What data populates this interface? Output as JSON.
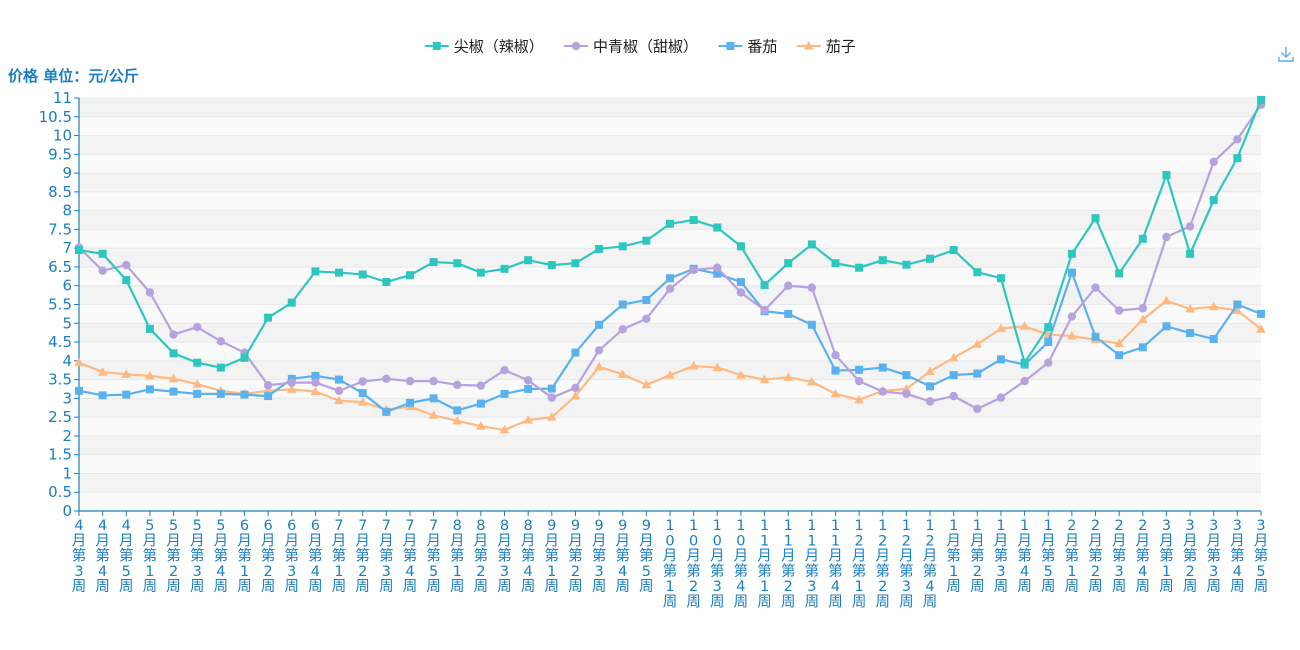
{
  "chart_data": {
    "type": "line",
    "unit_label": "价格 单位：元/公斤",
    "ylim": [
      0,
      11
    ],
    "y_ticks": [
      "0",
      "0.5",
      "1",
      "1.5",
      "2",
      "2.5",
      "3",
      "3.5",
      "4",
      "4.5",
      "5",
      "5.5",
      "6",
      "6.5",
      "7",
      "7.5",
      "8",
      "8.5",
      "9",
      "9.5",
      "10",
      "10.5",
      "11"
    ],
    "grid": "horizontal bands",
    "legend_position": "top-center",
    "categories": [
      "4月第3周",
      "4月第4周",
      "4月第5周",
      "5月第1周",
      "5月第2周",
      "5月第3周",
      "5月第4周",
      "6月第1周",
      "6月第2周",
      "6月第3周",
      "6月第4周",
      "7月第1周",
      "7月第2周",
      "7月第3周",
      "7月第4周",
      "7月第5周",
      "8月第1周",
      "8月第2周",
      "8月第3周",
      "8月第4周",
      "9月第1周",
      "9月第2周",
      "9月第3周",
      "9月第4周",
      "9月第5周",
      "10月第1周",
      "10月第2周",
      "10月第3周",
      "10月第4周",
      "11月第1周",
      "11月第2周",
      "11月第3周",
      "11月第4周",
      "12月第1周",
      "12月第2周",
      "12月第3周",
      "12月第4周",
      "1月第1周",
      "1月第2周",
      "1月第3周",
      "1月第4周",
      "1月第5周",
      "2月第1周",
      "2月第2周",
      "2月第3周",
      "2月第4周",
      "3月第1周",
      "3月第2周",
      "3月第3周",
      "3月第4周",
      "3月第5周"
    ],
    "series": [
      {
        "name": "尖椒（辣椒）",
        "color": "#2ec7c0",
        "marker": "square",
        "values": [
          6.95,
          6.85,
          6.15,
          4.85,
          4.2,
          3.95,
          3.82,
          4.08,
          5.15,
          5.55,
          6.38,
          6.35,
          6.3,
          6.1,
          6.28,
          6.63,
          6.6,
          6.35,
          6.45,
          6.68,
          6.55,
          6.6,
          6.98,
          7.05,
          7.2,
          7.65,
          7.75,
          7.55,
          7.05,
          6.02,
          6.6,
          7.1,
          6.6,
          6.48,
          6.68,
          6.56,
          6.72,
          6.95,
          6.36,
          6.2,
          3.95,
          4.9,
          6.85,
          7.8,
          6.33,
          7.25,
          8.95,
          6.85,
          8.28,
          9.4,
          10.95
        ]
      },
      {
        "name": "中青椒（甜椒）",
        "color": "#b6a2de",
        "marker": "circle",
        "values": [
          7.02,
          6.4,
          6.55,
          5.82,
          4.7,
          4.9,
          4.52,
          4.22,
          3.35,
          3.42,
          3.42,
          3.2,
          3.45,
          3.52,
          3.46,
          3.46,
          3.36,
          3.34,
          3.75,
          3.48,
          3.02,
          3.28,
          4.28,
          4.84,
          5.12,
          5.92,
          6.42,
          6.48,
          5.82,
          5.35,
          6.0,
          5.95,
          4.15,
          3.46,
          3.18,
          3.12,
          2.92,
          3.06,
          2.72,
          3.02,
          3.46,
          3.95,
          5.18,
          5.95,
          5.34,
          5.4,
          7.3,
          7.58,
          9.3,
          9.9,
          10.82
        ]
      },
      {
        "name": "番茄",
        "color": "#5ab1ef",
        "marker": "square",
        "values": [
          3.2,
          3.08,
          3.1,
          3.24,
          3.18,
          3.12,
          3.12,
          3.1,
          3.06,
          3.52,
          3.6,
          3.5,
          3.14,
          2.64,
          2.88,
          3.0,
          2.68,
          2.86,
          3.12,
          3.25,
          3.26,
          4.22,
          4.96,
          5.5,
          5.62,
          6.2,
          6.45,
          6.32,
          6.1,
          5.32,
          5.25,
          4.96,
          3.74,
          3.76,
          3.82,
          3.62,
          3.32,
          3.62,
          3.66,
          4.04,
          3.9,
          4.5,
          6.35,
          4.64,
          4.15,
          4.36,
          4.92,
          4.74,
          4.58,
          5.5,
          5.25
        ]
      },
      {
        "name": "茄子",
        "color": "#ffb980",
        "marker": "triangle",
        "values": [
          3.95,
          3.7,
          3.64,
          3.6,
          3.52,
          3.38,
          3.2,
          3.12,
          3.2,
          3.24,
          3.18,
          2.94,
          2.9,
          2.7,
          2.78,
          2.55,
          2.4,
          2.26,
          2.16,
          2.42,
          2.5,
          3.06,
          3.84,
          3.64,
          3.36,
          3.62,
          3.86,
          3.82,
          3.62,
          3.5,
          3.56,
          3.44,
          3.12,
          2.96,
          3.2,
          3.25,
          3.72,
          4.08,
          4.44,
          4.86,
          4.92,
          4.7,
          4.66,
          4.56,
          4.46,
          5.1,
          5.6,
          5.38,
          5.44,
          5.34,
          4.84
        ]
      }
    ]
  },
  "toolbar": {
    "save_icon": "download-icon"
  }
}
